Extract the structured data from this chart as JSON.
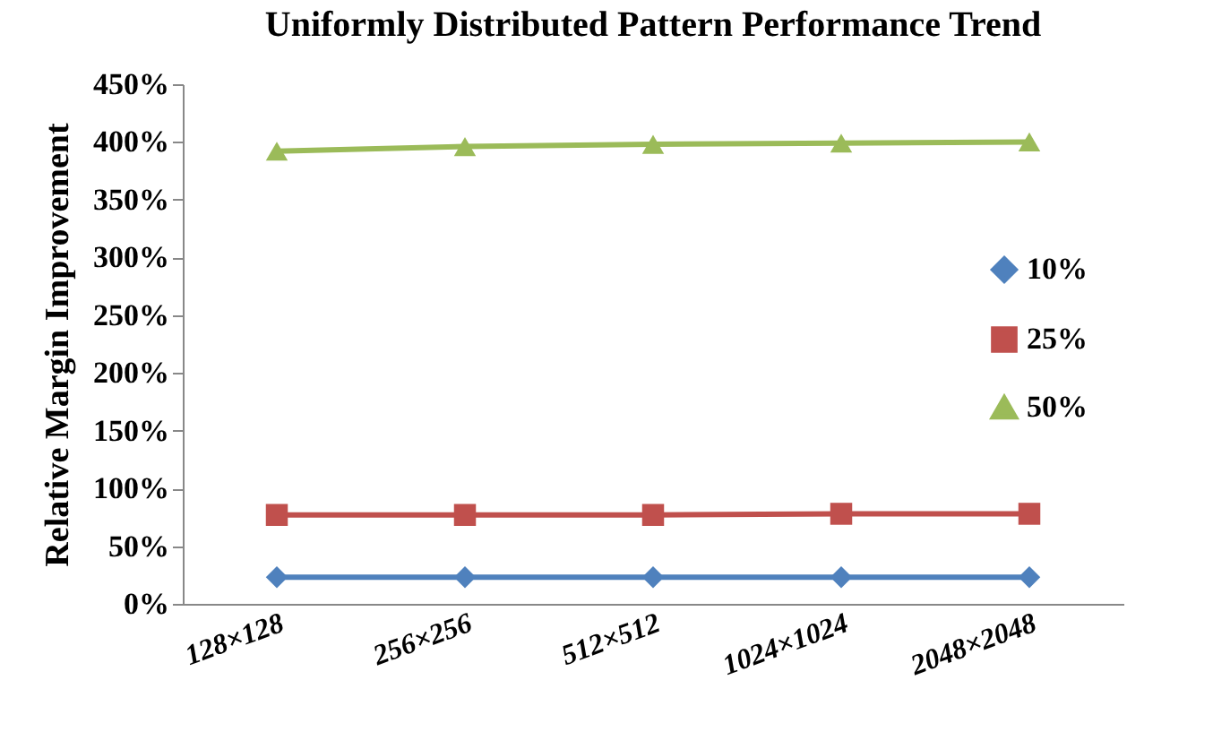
{
  "chart_data": {
    "type": "line",
    "title": "Uniformly Distributed Pattern Performance Trend",
    "ylabel": "Relative Margin Improvement",
    "categories": [
      "128×128",
      "256×256",
      "512×512",
      "1024×1024",
      "2048×2048"
    ],
    "series": [
      {
        "name": "10%",
        "color": "#4f81bd",
        "marker": "diamond",
        "values": [
          23,
          23,
          23,
          23,
          23
        ]
      },
      {
        "name": "25%",
        "color": "#c0504d",
        "marker": "square",
        "values": [
          77,
          77,
          77,
          78,
          78
        ]
      },
      {
        "name": "50%",
        "color": "#9bbb59",
        "marker": "triangle",
        "values": [
          392,
          396,
          398,
          399,
          400
        ]
      }
    ],
    "ylim": [
      0,
      450
    ],
    "yticks": [
      {
        "value": 0,
        "label": "0%"
      },
      {
        "value": 50,
        "label": "50%"
      },
      {
        "value": 100,
        "label": "100%"
      },
      {
        "value": 150,
        "label": "150%"
      },
      {
        "value": 200,
        "label": "200%"
      },
      {
        "value": 250,
        "label": "250%"
      },
      {
        "value": 300,
        "label": "300%"
      },
      {
        "value": 350,
        "label": "350%"
      },
      {
        "value": 400,
        "label": "400%"
      },
      {
        "value": 450,
        "label": "450%"
      }
    ],
    "grid": false,
    "legend": "right",
    "line_style": "solid"
  }
}
